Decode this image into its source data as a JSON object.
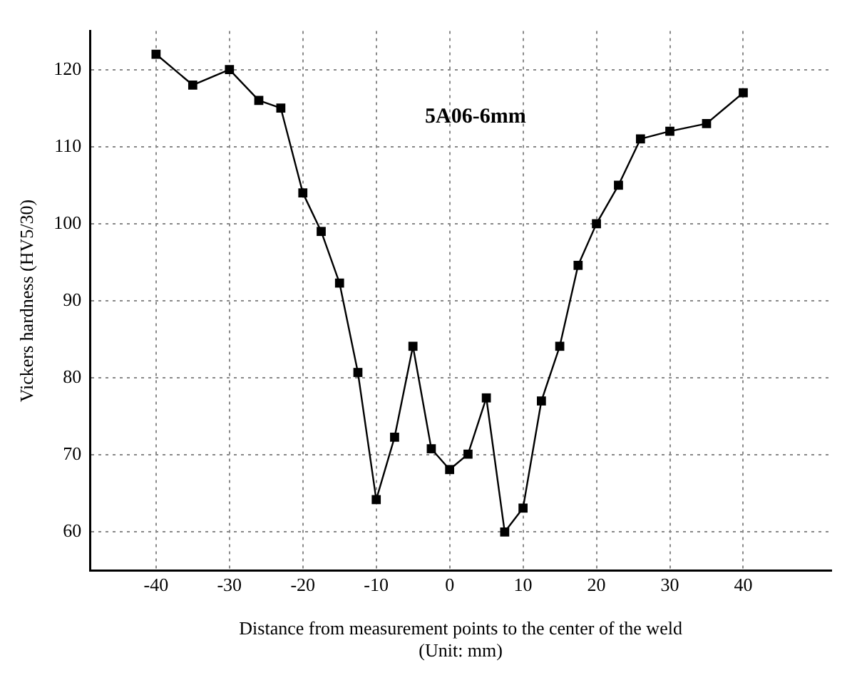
{
  "chart_data": {
    "type": "line",
    "xlabel": "Distance from measurement points to the center of the weld\n(Unit: mm)",
    "ylabel": "Vickers hardness (HV5/30)",
    "annotations": [
      "5A06-6mm"
    ],
    "series": [
      {
        "color": "#000000",
        "x": [
          -40,
          -35,
          -30,
          -26,
          -23,
          -20,
          -17.5,
          -15,
          -12.5,
          -10,
          -7.5,
          -5,
          -2.5,
          0,
          2.5,
          5,
          7.5,
          10,
          12.5,
          15,
          17.5,
          20,
          23,
          26,
          30,
          35,
          40
        ],
        "values": [
          122,
          118,
          120,
          116,
          115,
          104,
          99,
          92.3,
          80.7,
          64.2,
          72.3,
          84.1,
          70.8,
          68.1,
          70.1,
          77.4,
          60,
          63.1,
          77,
          84.1,
          94.6,
          100,
          105,
          111,
          112,
          113,
          117
        ]
      }
    ],
    "xlim": [
      -49,
      52
    ],
    "xticks": [
      -40,
      -30,
      -20,
      -10,
      0,
      10,
      20,
      30,
      40
    ],
    "ylim": [
      55,
      125
    ],
    "yticks": [
      60,
      70,
      80,
      90,
      100,
      110,
      120
    ],
    "grid": true,
    "legend": false,
    "marker": "square",
    "line_style": "solid"
  }
}
